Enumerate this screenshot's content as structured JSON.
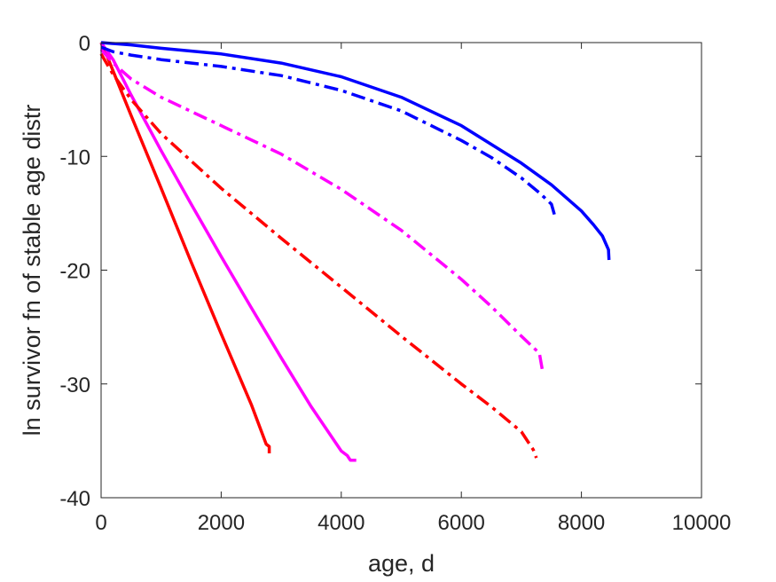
{
  "chart_data": {
    "type": "line",
    "title": "",
    "xlabel": "age, d",
    "ylabel": "ln survivor fn of stable age distr",
    "xlim": [
      0,
      10000
    ],
    "ylim": [
      -40,
      0
    ],
    "xticks": [
      "0",
      "2000",
      "4000",
      "6000",
      "8000",
      "10000"
    ],
    "yticks": [
      "0",
      "-10",
      "-20",
      "-30",
      "-40"
    ],
    "xtick_values": [
      0,
      2000,
      4000,
      6000,
      8000,
      10000
    ],
    "ytick_values": [
      0,
      -10,
      -20,
      -30,
      -40
    ],
    "grid": false,
    "legend": "none",
    "series": [
      {
        "color": "#ff0000",
        "style": "solid",
        "x": [
          0,
          100,
          500,
          1000,
          1500,
          2000,
          2500,
          2750,
          2800,
          2800
        ],
        "y": [
          0,
          -1.2,
          -6.4,
          -12.8,
          -19.3,
          -25.6,
          -31.8,
          -35.3,
          -35.5,
          -36.1
        ]
      },
      {
        "color": "#ff00ff",
        "style": "solid",
        "x": [
          0,
          200,
          500,
          1000,
          1500,
          2000,
          2500,
          3000,
          3500,
          4000,
          4100,
          4150,
          4250
        ],
        "y": [
          0,
          -1.5,
          -4.6,
          -9.5,
          -14.2,
          -18.8,
          -23.3,
          -27.7,
          -32.0,
          -35.9,
          -36.3,
          -36.7,
          -36.7
        ]
      },
      {
        "color": "#ff0000",
        "style": "dashdot",
        "x": [
          0,
          200,
          500,
          1000,
          2000,
          3000,
          4000,
          5000,
          6000,
          6500,
          7000,
          7200,
          7250
        ],
        "y": [
          -1.0,
          -2.8,
          -5.0,
          -8.0,
          -12.8,
          -17.2,
          -21.5,
          -25.8,
          -30.0,
          -32.0,
          -34.2,
          -35.8,
          -36.5
        ]
      },
      {
        "color": "#ff00ff",
        "style": "dashdot",
        "x": [
          0,
          200,
          500,
          1000,
          2000,
          3000,
          4000,
          5000,
          6000,
          6500,
          7000,
          7300,
          7350
        ],
        "y": [
          -0.6,
          -1.8,
          -3.2,
          -4.8,
          -7.3,
          -9.8,
          -12.9,
          -16.5,
          -20.8,
          -23.2,
          -25.8,
          -27.3,
          -28.8
        ]
      },
      {
        "color": "#0000ff",
        "style": "solid",
        "x": [
          0,
          500,
          1000,
          2000,
          3000,
          4000,
          5000,
          6000,
          7000,
          7500,
          8000,
          8200,
          8350,
          8450,
          8460
        ],
        "y": [
          0,
          -0.2,
          -0.5,
          -1.0,
          -1.8,
          -3.0,
          -4.8,
          -7.3,
          -10.6,
          -12.5,
          -14.8,
          -16.0,
          -17.0,
          -18.2,
          -19.1
        ]
      },
      {
        "color": "#0000ff",
        "style": "dashdot",
        "x": [
          0,
          200,
          500,
          1000,
          2000,
          3000,
          4000,
          5000,
          6000,
          6500,
          7000,
          7300,
          7500,
          7550
        ],
        "y": [
          -0.4,
          -0.8,
          -1.1,
          -1.5,
          -2.1,
          -2.9,
          -4.2,
          -6.0,
          -8.6,
          -10.1,
          -11.9,
          -13.2,
          -14.2,
          -15.1
        ]
      }
    ]
  }
}
